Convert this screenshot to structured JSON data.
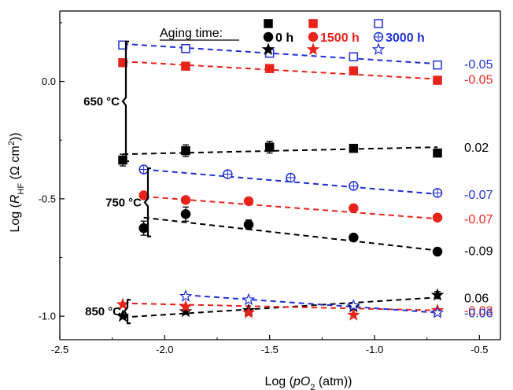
{
  "chart_data": {
    "type": "scatter",
    "xlabel_main": "Log (",
    "xlabel_italic": "pO",
    "xlabel_sub": "2",
    "xlabel_tail": " (atm))",
    "ylabel_main": "Log (",
    "ylabel_italic": "R",
    "ylabel_sub": "HF",
    "ylabel_tail": " (Ω cm",
    "ylabel_sup": "2",
    "ylabel_end": "))",
    "xlim": [
      -2.5,
      -0.4
    ],
    "ylim": [
      -1.1,
      0.3
    ],
    "xticks": [
      -2.5,
      -2.0,
      -1.5,
      -1.0,
      -0.5
    ],
    "xtick_labels": [
      "-2.5",
      "-2.0",
      "-1.5",
      "-1.0",
      "-0.5"
    ],
    "yticks": [
      -1.0,
      -0.5,
      0.0
    ],
    "ytick_labels": [
      "-1.0",
      "-0.5",
      "0.0"
    ],
    "grid": false,
    "legend": {
      "title": "Aging time:",
      "entries": [
        {
          "label": "0 h",
          "color": "#000000"
        },
        {
          "label": "1500 h",
          "color": "#e8231b"
        },
        {
          "label": "3000 h",
          "color": "#1f2fd6"
        }
      ]
    },
    "groups": [
      {
        "label": "650",
        "unit": "°C",
        "marker": "square",
        "bracket_ylim": [
          -0.34,
          0.17
        ]
      },
      {
        "label": "750",
        "unit": "°C",
        "marker": "circle",
        "bracket_ylim": [
          -0.66,
          -0.37
        ]
      },
      {
        "label": "850",
        "unit": "°C",
        "marker": "star",
        "bracket_ylim": [
          -1.03,
          -0.93
        ]
      }
    ],
    "series": [
      {
        "temp": "650",
        "aging": "0 h",
        "color": "#000000",
        "marker": "square",
        "filled": true,
        "x": [
          -2.2,
          -1.9,
          -1.5,
          -1.1,
          -0.7
        ],
        "y": [
          -0.335,
          -0.295,
          -0.28,
          -0.285,
          -0.305
        ],
        "err": [
          0.025,
          0.025,
          0.025,
          0.012,
          0.012
        ],
        "fit": [
          [
            -2.2,
            -0.31
          ],
          [
            -0.7,
            -0.28
          ]
        ],
        "slope": "0.02"
      },
      {
        "temp": "650",
        "aging": "1500 h",
        "color": "#e8231b",
        "marker": "square",
        "filled": true,
        "x": [
          -2.2,
          -1.9,
          -1.5,
          -1.1,
          -0.7
        ],
        "y": [
          0.08,
          0.065,
          0.055,
          0.045,
          0.005
        ],
        "err": [
          0,
          0,
          0,
          0,
          0
        ],
        "fit": [
          [
            -2.2,
            0.085
          ],
          [
            -0.7,
            0.01
          ]
        ],
        "slope": "-0.05"
      },
      {
        "temp": "650",
        "aging": "3000 h",
        "color": "#1f2fd6",
        "marker": "square",
        "filled": false,
        "x": [
          -2.2,
          -1.9,
          -1.5,
          -1.1,
          -0.7
        ],
        "y": [
          0.155,
          0.14,
          0.12,
          0.105,
          0.07
        ],
        "err": [
          0,
          0,
          0,
          0,
          0
        ],
        "fit": [
          [
            -2.2,
            0.16
          ],
          [
            -0.7,
            0.075
          ]
        ],
        "slope": "-0.05"
      },
      {
        "temp": "750",
        "aging": "0 h",
        "color": "#000000",
        "marker": "circle",
        "filled": true,
        "x": [
          -2.1,
          -1.9,
          -1.6,
          -1.1,
          -0.7
        ],
        "y": [
          -0.625,
          -0.565,
          -0.61,
          -0.665,
          -0.725
        ],
        "err": [
          0.03,
          0.03,
          0.02,
          0.012,
          0.012
        ],
        "fit": [
          [
            -2.1,
            -0.58
          ],
          [
            -0.7,
            -0.72
          ]
        ],
        "slope": "-0.09"
      },
      {
        "temp": "750",
        "aging": "1500 h",
        "color": "#e8231b",
        "marker": "circle",
        "filled": true,
        "x": [
          -2.1,
          -1.9,
          -1.6,
          -1.1,
          -0.7
        ],
        "y": [
          -0.485,
          -0.505,
          -0.51,
          -0.54,
          -0.58
        ],
        "err": [
          0,
          0,
          0,
          0,
          0
        ],
        "fit": [
          [
            -2.1,
            -0.49
          ],
          [
            -0.7,
            -0.585
          ]
        ],
        "slope": "-0.07"
      },
      {
        "temp": "750",
        "aging": "3000 h",
        "color": "#1f2fd6",
        "marker": "circle",
        "filled": false,
        "x": [
          -2.1,
          -1.7,
          -1.4,
          -1.1,
          -0.7
        ],
        "y": [
          -0.375,
          -0.395,
          -0.41,
          -0.445,
          -0.475
        ],
        "err": [
          0,
          0,
          0,
          0,
          0
        ],
        "fit": [
          [
            -2.1,
            -0.375
          ],
          [
            -0.7,
            -0.48
          ]
        ],
        "slope": "-0.07"
      },
      {
        "temp": "850",
        "aging": "0 h",
        "color": "#000000",
        "marker": "star",
        "filled": true,
        "x": [
          -2.2,
          -1.9,
          -1.6,
          -1.1,
          -0.7
        ],
        "y": [
          -1.0,
          -0.98,
          -0.975,
          -0.96,
          -0.91
        ],
        "err": [
          0,
          0.012,
          0,
          0,
          0.015
        ],
        "fit": [
          [
            -2.2,
            -1.005
          ],
          [
            -0.7,
            -0.92
          ]
        ],
        "slope": "0.06"
      },
      {
        "temp": "850",
        "aging": "1500 h",
        "color": "#e8231b",
        "marker": "star",
        "filled": true,
        "x": [
          -2.2,
          -1.9,
          -1.6,
          -1.1,
          -0.7
        ],
        "y": [
          -0.95,
          -0.96,
          -0.985,
          -0.995,
          -0.975
        ],
        "err": [
          0,
          0,
          0,
          0,
          0
        ],
        "fit": [
          [
            -2.2,
            -0.945
          ],
          [
            -0.7,
            -0.975
          ]
        ],
        "slope": "-0.03"
      },
      {
        "temp": "850",
        "aging": "3000 h",
        "color": "#1f2fd6",
        "marker": "star",
        "filled": false,
        "x": [
          -1.9,
          -1.6,
          -1.1,
          -0.7
        ],
        "y": [
          -0.915,
          -0.93,
          -0.955,
          -0.985
        ],
        "err": [
          0,
          0,
          0,
          0
        ],
        "fit": [
          [
            -1.9,
            -0.91
          ],
          [
            -0.7,
            -0.985
          ]
        ],
        "slope": "-0.06"
      }
    ]
  }
}
